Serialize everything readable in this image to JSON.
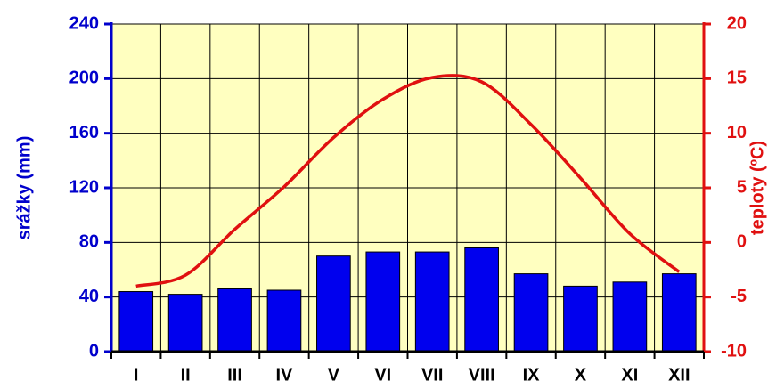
{
  "chart_data": {
    "type": "bar-line",
    "categories": [
      "I",
      "II",
      "III",
      "IV",
      "V",
      "VI",
      "VII",
      "VIII",
      "IX",
      "X",
      "XI",
      "XII"
    ],
    "ylabel": "srážky (mm)",
    "y2label": "teploty (ºC)",
    "ylim": [
      0,
      240
    ],
    "yticks": [
      0,
      40,
      80,
      120,
      160,
      200,
      240
    ],
    "y2lim": [
      -10,
      20
    ],
    "y2ticks": [
      -10,
      -5,
      0,
      5,
      10,
      15,
      20
    ],
    "grid": true,
    "background": "#ffffc0",
    "series": [
      {
        "type": "bar",
        "color": "#0000ee",
        "values": [
          44,
          42,
          46,
          45,
          70,
          73,
          73,
          76,
          57,
          48,
          51,
          57
        ]
      },
      {
        "type": "line",
        "axis": "y2",
        "color": "#e01010",
        "values": [
          -4,
          -3,
          1.2,
          5.1,
          9.6,
          13.1,
          15.1,
          14.7,
          10.8,
          5.9,
          0.8,
          -2.7
        ]
      }
    ]
  }
}
